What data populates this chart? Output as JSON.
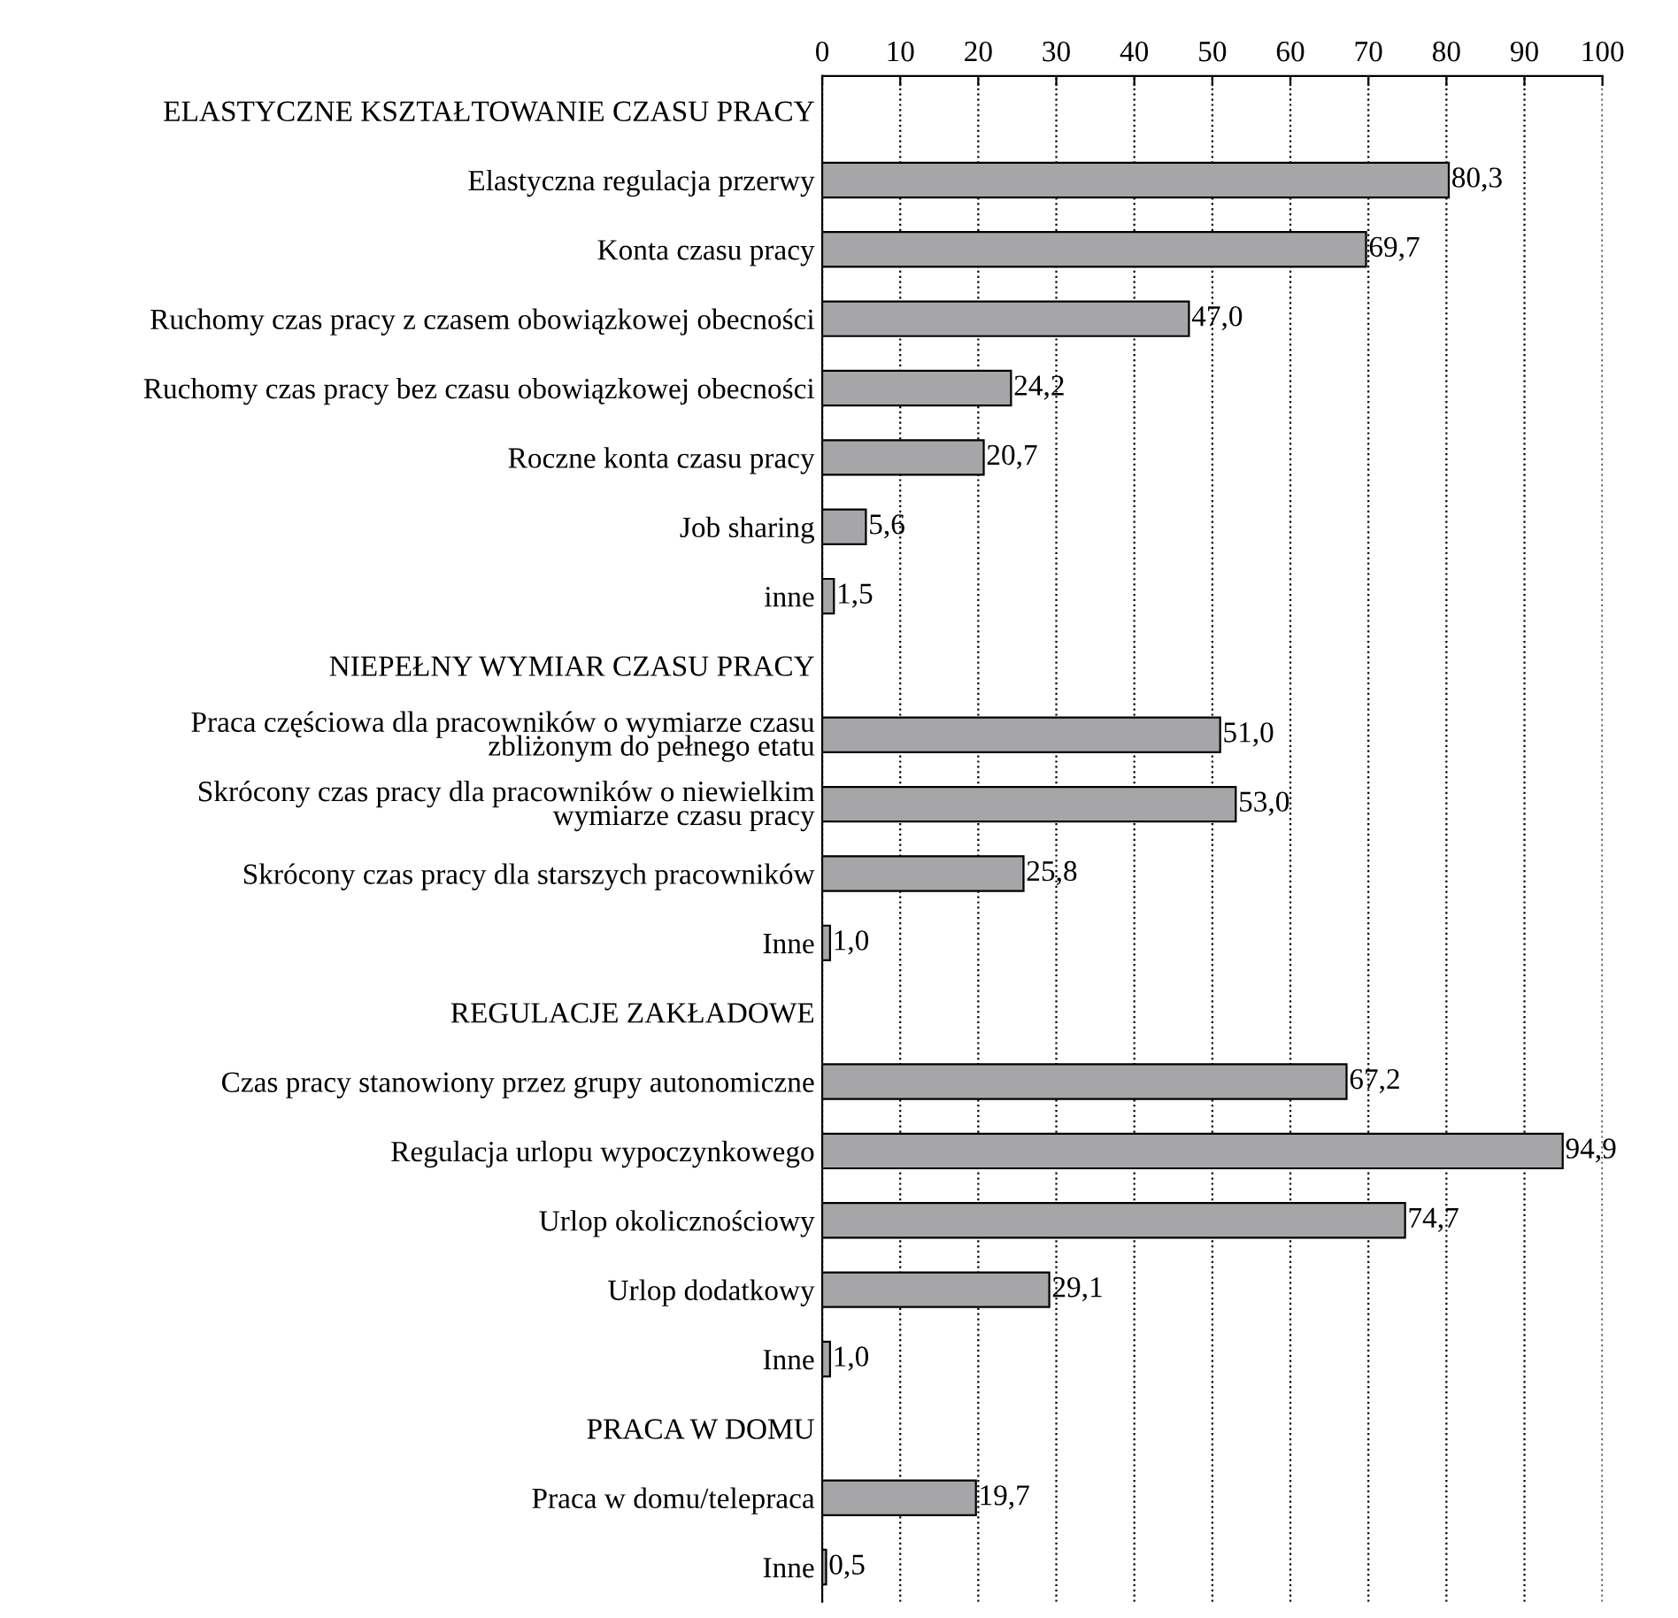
{
  "chart_data": {
    "type": "bar",
    "orientation": "horizontal",
    "categories": [
      "ELASTYCZNE KSZTAŁTOWANIE CZASU PRACY",
      "Elastyczna regulacja przerwy",
      "Konta czasu pracy",
      "Ruchomy czas pracy z czasem obowiązkowej obecności",
      "Ruchomy czas pracy bez czasu obowiązkowej obecności",
      "Roczne konta czasu pracy",
      "Job sharing",
      "inne",
      "NIEPEŁNY WYMIAR CZASU PRACY",
      "Praca częściowa dla pracowników o wymiarze czasu\nzbliżonym do pełnego etatu",
      "Skrócony czas pracy dla pracowników o niewielkim\nwymiarze czasu pracy",
      "Skrócony czas pracy dla starszych pracowników",
      "Inne",
      "REGULACJE ZAKŁADOWE",
      "Czas pracy stanowiony przez grupy autonomiczne",
      "Regulacja urlopu wypoczynkowego",
      "Urlop okolicznościowy",
      "Urlop dodatkowy",
      "Inne",
      "PRACA W DOMU",
      "Praca w domu/telepraca",
      "Inne"
    ],
    "values": [
      null,
      80.3,
      69.7,
      47.0,
      24.2,
      20.7,
      5.6,
      1.5,
      null,
      51.0,
      53.0,
      25.8,
      1.0,
      null,
      67.2,
      94.9,
      74.7,
      29.1,
      1.0,
      null,
      19.7,
      0.5
    ],
    "value_labels": [
      null,
      "80,3",
      "69,7",
      "47,0",
      "24,2",
      "20,7",
      "5,6",
      "1,5",
      null,
      "51,0",
      "53,0",
      "25,8",
      "1,0",
      null,
      "67,2",
      "94,9",
      "74,7",
      "29,1",
      "1,0",
      null,
      "19,7",
      "0,5"
    ],
    "color": "#a6a6a8",
    "xlim": [
      0,
      100
    ],
    "xticks": [
      0,
      10,
      20,
      30,
      40,
      50,
      60,
      70,
      80,
      90,
      100
    ],
    "grid": "x",
    "legend": false
  }
}
